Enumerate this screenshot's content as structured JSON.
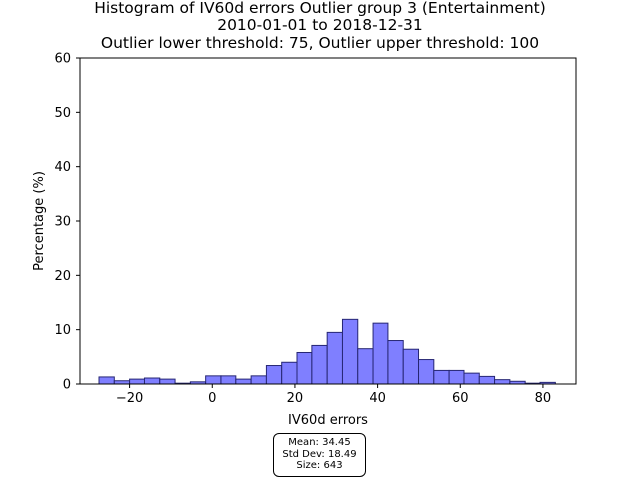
{
  "chart_data": {
    "type": "bar",
    "title_lines": [
      "Histogram of IV60d errors Outlier group 3 (Entertainment)",
      "2010-01-01 to 2018-12-31",
      "Outlier lower threshold: 75, Outlier upper threshold: 100"
    ],
    "xlabel": "IV60d errors",
    "ylabel": "Percentage (%)",
    "xlim": [
      -32,
      88
    ],
    "ylim": [
      0,
      60
    ],
    "xticks": [
      -20,
      0,
      20,
      40,
      60,
      80
    ],
    "xtick_labels": [
      "−20",
      "0",
      "20",
      "40",
      "60",
      "80"
    ],
    "yticks": [
      0,
      10,
      20,
      30,
      40,
      50,
      60
    ],
    "bar_color": "#7f7fff",
    "bar_edge_color": "#262673",
    "bins": [
      {
        "x0": -27.4,
        "x1": -23.7,
        "value": 1.3
      },
      {
        "x0": -23.7,
        "x1": -20.0,
        "value": 0.6
      },
      {
        "x0": -20.0,
        "x1": -16.4,
        "value": 0.9
      },
      {
        "x0": -16.4,
        "x1": -12.7,
        "value": 1.1
      },
      {
        "x0": -12.7,
        "x1": -9.0,
        "value": 0.9
      },
      {
        "x0": -9.0,
        "x1": -5.3,
        "value": 0.15
      },
      {
        "x0": -5.3,
        "x1": -1.6,
        "value": 0.4
      },
      {
        "x0": -1.6,
        "x1": 2.1,
        "value": 1.5
      },
      {
        "x0": 2.1,
        "x1": 5.7,
        "value": 1.5
      },
      {
        "x0": 5.7,
        "x1": 9.4,
        "value": 0.9
      },
      {
        "x0": 9.4,
        "x1": 13.1,
        "value": 1.5
      },
      {
        "x0": 13.1,
        "x1": 16.8,
        "value": 3.4
      },
      {
        "x0": 16.8,
        "x1": 20.5,
        "value": 4.0
      },
      {
        "x0": 20.5,
        "x1": 24.1,
        "value": 5.8
      },
      {
        "x0": 24.1,
        "x1": 27.8,
        "value": 7.1
      },
      {
        "x0": 27.8,
        "x1": 31.5,
        "value": 9.5
      },
      {
        "x0": 31.5,
        "x1": 35.2,
        "value": 11.9
      },
      {
        "x0": 35.2,
        "x1": 38.9,
        "value": 6.5
      },
      {
        "x0": 38.9,
        "x1": 42.5,
        "value": 11.2
      },
      {
        "x0": 42.5,
        "x1": 46.2,
        "value": 8.0
      },
      {
        "x0": 46.2,
        "x1": 49.9,
        "value": 6.4
      },
      {
        "x0": 49.9,
        "x1": 53.6,
        "value": 4.5
      },
      {
        "x0": 53.6,
        "x1": 57.3,
        "value": 2.5
      },
      {
        "x0": 57.3,
        "x1": 60.9,
        "value": 2.5
      },
      {
        "x0": 60.9,
        "x1": 64.6,
        "value": 2.0
      },
      {
        "x0": 64.6,
        "x1": 68.3,
        "value": 1.4
      },
      {
        "x0": 68.3,
        "x1": 72.0,
        "value": 0.8
      },
      {
        "x0": 72.0,
        "x1": 75.7,
        "value": 0.5
      },
      {
        "x0": 75.7,
        "x1": 79.3,
        "value": 0.15
      },
      {
        "x0": 79.3,
        "x1": 83.0,
        "value": 0.3
      }
    ],
    "stats": {
      "mean": "Mean: 34.45",
      "std": "Std Dev: 18.49",
      "size": "Size: 643"
    }
  }
}
